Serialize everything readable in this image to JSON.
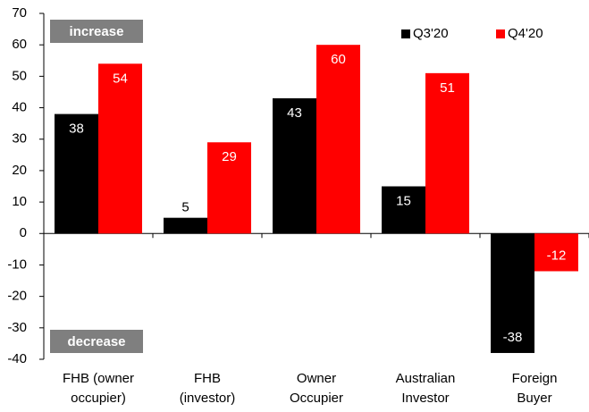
{
  "chart_data": {
    "type": "bar",
    "categories": [
      [
        "FHB (owner",
        "occupier)"
      ],
      [
        "FHB",
        "(investor)"
      ],
      [
        "Owner",
        "Occupier"
      ],
      [
        "Australian",
        "Investor"
      ],
      [
        "Foreign",
        "Buyer"
      ]
    ],
    "series": [
      {
        "name": "Q3'20",
        "color": "#000000",
        "values": [
          38,
          5,
          43,
          15,
          -38
        ]
      },
      {
        "name": "Q4'20",
        "color": "#ff0000",
        "values": [
          54,
          29,
          60,
          51,
          -12
        ]
      }
    ],
    "ylim": [
      -40,
      70
    ],
    "yticks": [
      -40,
      -30,
      -20,
      -10,
      0,
      10,
      20,
      30,
      40,
      50,
      60,
      70
    ],
    "annotations": [
      "increase",
      "decrease"
    ],
    "legend": "top-right"
  }
}
